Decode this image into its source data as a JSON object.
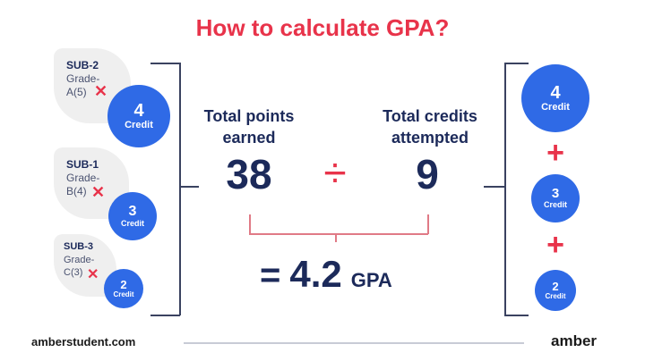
{
  "title": "How to calculate GPA?",
  "subjects": [
    {
      "name": "SUB-2",
      "grade_label": "Grade-",
      "grade": "A(5)",
      "credit": "4",
      "credit_label": "Credit"
    },
    {
      "name": "SUB-1",
      "grade_label": "Grade-",
      "grade": "B(4)",
      "credit": "3",
      "credit_label": "Credit"
    },
    {
      "name": "SUB-3",
      "grade_label": "Grade-",
      "grade": "C(3)",
      "credit": "2",
      "credit_label": "Credit"
    }
  ],
  "multiply_symbol": "✕",
  "points_label_1": "Total points",
  "points_label_2": "earned",
  "points_value": "38",
  "divide_symbol": "÷",
  "credits_label_1": "Total credits",
  "credits_label_2": "attempted",
  "credits_value": "9",
  "result": {
    "equals": "=",
    "value": "4.2",
    "unit": "GPA"
  },
  "plus_symbol": "+",
  "footer": {
    "website": "amberstudent.com",
    "brand": "amber"
  },
  "colors": {
    "accent": "#e8334a",
    "circle": "#2f6ae6",
    "text": "#1c2a5a"
  }
}
